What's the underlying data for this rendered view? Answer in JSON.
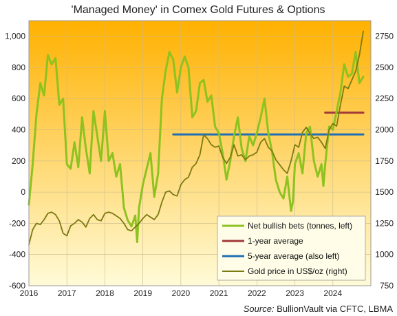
{
  "chart_data": {
    "type": "line",
    "title": "'Managed Money' in Comex Gold Futures & Options",
    "source_label": "Source:",
    "source_text": "BullionVault via CFTC, LBMA",
    "x_ticks": [
      "2016",
      "2017",
      "2018",
      "2019",
      "2020",
      "2021",
      "2022",
      "2023",
      "2024"
    ],
    "y_left": {
      "ylim": [
        -600,
        1100
      ],
      "ticks": [
        -600,
        -400,
        -200,
        0,
        200,
        400,
        600,
        800,
        1000
      ],
      "tick_labels": [
        "-600",
        "-400",
        "-200",
        "0",
        "200",
        "400",
        "600",
        "800",
        "1,000"
      ]
    },
    "y_right": {
      "ylim": [
        750,
        2875
      ],
      "ticks": [
        750,
        1000,
        1250,
        1500,
        1750,
        2000,
        2250,
        2500,
        2750
      ],
      "tick_labels": [
        "750",
        "1000",
        "1250",
        "1500",
        "1750",
        "2000",
        "2250",
        "2500",
        "2750"
      ]
    },
    "grid": true,
    "legend_position": "bottom-right",
    "colors": {
      "net_bets": "#8dc21f",
      "one_year": "#a0393a",
      "five_year": "#1f6fb4",
      "gold": "#7a7a12",
      "bg_top": "#ffb100",
      "bg_bottom": "#fffbd8"
    },
    "series": [
      {
        "key": "net_bets",
        "name": "Net bullish bets (tonnes, left)",
        "axis": "left",
        "points": [
          [
            2016.0,
            -80
          ],
          [
            2016.1,
            180
          ],
          [
            2016.2,
            500
          ],
          [
            2016.3,
            700
          ],
          [
            2016.4,
            620
          ],
          [
            2016.5,
            880
          ],
          [
            2016.6,
            820
          ],
          [
            2016.7,
            860
          ],
          [
            2016.8,
            560
          ],
          [
            2016.9,
            600
          ],
          [
            2017.0,
            180
          ],
          [
            2017.1,
            150
          ],
          [
            2017.2,
            320
          ],
          [
            2017.3,
            160
          ],
          [
            2017.4,
            480
          ],
          [
            2017.5,
            280
          ],
          [
            2017.6,
            120
          ],
          [
            2017.7,
            520
          ],
          [
            2017.8,
            360
          ],
          [
            2017.9,
            200
          ],
          [
            2018.0,
            520
          ],
          [
            2018.1,
            200
          ],
          [
            2018.2,
            250
          ],
          [
            2018.3,
            100
          ],
          [
            2018.4,
            180
          ],
          [
            2018.5,
            -100
          ],
          [
            2018.6,
            -180
          ],
          [
            2018.7,
            -220
          ],
          [
            2018.8,
            -150
          ],
          [
            2018.85,
            -320
          ],
          [
            2018.9,
            -100
          ],
          [
            2019.0,
            50
          ],
          [
            2019.1,
            150
          ],
          [
            2019.2,
            250
          ],
          [
            2019.3,
            -30
          ],
          [
            2019.4,
            120
          ],
          [
            2019.5,
            600
          ],
          [
            2019.6,
            780
          ],
          [
            2019.7,
            900
          ],
          [
            2019.8,
            850
          ],
          [
            2019.9,
            640
          ],
          [
            2020.0,
            800
          ],
          [
            2020.1,
            870
          ],
          [
            2020.2,
            800
          ],
          [
            2020.3,
            480
          ],
          [
            2020.4,
            520
          ],
          [
            2020.5,
            700
          ],
          [
            2020.6,
            720
          ],
          [
            2020.7,
            580
          ],
          [
            2020.8,
            620
          ],
          [
            2020.9,
            420
          ],
          [
            2021.0,
            380
          ],
          [
            2021.1,
            250
          ],
          [
            2021.2,
            80
          ],
          [
            2021.3,
            200
          ],
          [
            2021.4,
            360
          ],
          [
            2021.5,
            480
          ],
          [
            2021.6,
            280
          ],
          [
            2021.7,
            200
          ],
          [
            2021.8,
            360
          ],
          [
            2021.9,
            300
          ],
          [
            2022.0,
            380
          ],
          [
            2022.1,
            480
          ],
          [
            2022.2,
            600
          ],
          [
            2022.3,
            380
          ],
          [
            2022.4,
            260
          ],
          [
            2022.5,
            80
          ],
          [
            2022.6,
            0
          ],
          [
            2022.7,
            -40
          ],
          [
            2022.8,
            100
          ],
          [
            2022.9,
            -120
          ],
          [
            2022.95,
            -60
          ],
          [
            2023.0,
            180
          ],
          [
            2023.1,
            250
          ],
          [
            2023.2,
            120
          ],
          [
            2023.3,
            380
          ],
          [
            2023.4,
            420
          ],
          [
            2023.5,
            200
          ],
          [
            2023.6,
            100
          ],
          [
            2023.7,
            180
          ],
          [
            2023.75,
            40
          ],
          [
            2023.8,
            180
          ],
          [
            2023.9,
            420
          ],
          [
            2024.0,
            400
          ],
          [
            2024.1,
            520
          ],
          [
            2024.2,
            640
          ],
          [
            2024.3,
            820
          ],
          [
            2024.4,
            740
          ],
          [
            2024.5,
            760
          ],
          [
            2024.6,
            900
          ],
          [
            2024.7,
            700
          ],
          [
            2024.8,
            740
          ]
        ]
      },
      {
        "key": "one_year",
        "name": "1-year average",
        "axis": "left",
        "points": [
          [
            2023.8,
            510
          ],
          [
            2024.8,
            510
          ]
        ]
      },
      {
        "key": "five_year",
        "name": "5-year average (also left)",
        "axis": "left",
        "points": [
          [
            2019.8,
            370
          ],
          [
            2024.8,
            370
          ]
        ]
      },
      {
        "key": "gold",
        "name": "Gold price in US$/oz (right)",
        "axis": "right",
        "points": [
          [
            2016.0,
            1080
          ],
          [
            2016.1,
            1200
          ],
          [
            2016.2,
            1250
          ],
          [
            2016.3,
            1240
          ],
          [
            2016.4,
            1280
          ],
          [
            2016.5,
            1330
          ],
          [
            2016.6,
            1340
          ],
          [
            2016.7,
            1320
          ],
          [
            2016.8,
            1270
          ],
          [
            2016.9,
            1170
          ],
          [
            2017.0,
            1150
          ],
          [
            2017.1,
            1230
          ],
          [
            2017.2,
            1250
          ],
          [
            2017.3,
            1280
          ],
          [
            2017.4,
            1260
          ],
          [
            2017.5,
            1220
          ],
          [
            2017.6,
            1290
          ],
          [
            2017.7,
            1320
          ],
          [
            2017.8,
            1280
          ],
          [
            2017.9,
            1270
          ],
          [
            2018.0,
            1330
          ],
          [
            2018.1,
            1340
          ],
          [
            2018.2,
            1330
          ],
          [
            2018.3,
            1310
          ],
          [
            2018.4,
            1290
          ],
          [
            2018.5,
            1250
          ],
          [
            2018.6,
            1200
          ],
          [
            2018.7,
            1190
          ],
          [
            2018.8,
            1220
          ],
          [
            2018.9,
            1250
          ],
          [
            2019.0,
            1290
          ],
          [
            2019.1,
            1320
          ],
          [
            2019.2,
            1300
          ],
          [
            2019.3,
            1280
          ],
          [
            2019.4,
            1320
          ],
          [
            2019.5,
            1420
          ],
          [
            2019.6,
            1500
          ],
          [
            2019.7,
            1510
          ],
          [
            2019.8,
            1480
          ],
          [
            2019.9,
            1470
          ],
          [
            2020.0,
            1560
          ],
          [
            2020.1,
            1600
          ],
          [
            2020.2,
            1620
          ],
          [
            2020.3,
            1700
          ],
          [
            2020.4,
            1730
          ],
          [
            2020.5,
            1800
          ],
          [
            2020.6,
            1960
          ],
          [
            2020.7,
            1930
          ],
          [
            2020.8,
            1880
          ],
          [
            2020.9,
            1860
          ],
          [
            2021.0,
            1870
          ],
          [
            2021.1,
            1780
          ],
          [
            2021.2,
            1730
          ],
          [
            2021.3,
            1780
          ],
          [
            2021.4,
            1880
          ],
          [
            2021.5,
            1790
          ],
          [
            2021.6,
            1800
          ],
          [
            2021.7,
            1760
          ],
          [
            2021.8,
            1790
          ],
          [
            2021.9,
            1800
          ],
          [
            2022.0,
            1820
          ],
          [
            2022.1,
            1900
          ],
          [
            2022.2,
            1930
          ],
          [
            2022.3,
            1860
          ],
          [
            2022.4,
            1830
          ],
          [
            2022.5,
            1760
          ],
          [
            2022.6,
            1720
          ],
          [
            2022.7,
            1680
          ],
          [
            2022.8,
            1650
          ],
          [
            2022.9,
            1750
          ],
          [
            2023.0,
            1880
          ],
          [
            2023.1,
            1860
          ],
          [
            2023.2,
            1980
          ],
          [
            2023.3,
            2020
          ],
          [
            2023.4,
            1970
          ],
          [
            2023.5,
            1930
          ],
          [
            2023.6,
            1940
          ],
          [
            2023.7,
            1900
          ],
          [
            2023.8,
            1850
          ],
          [
            2023.9,
            2000
          ],
          [
            2024.0,
            2050
          ],
          [
            2024.1,
            2030
          ],
          [
            2024.2,
            2200
          ],
          [
            2024.3,
            2350
          ],
          [
            2024.4,
            2330
          ],
          [
            2024.5,
            2400
          ],
          [
            2024.6,
            2470
          ],
          [
            2024.7,
            2600
          ],
          [
            2024.8,
            2790
          ]
        ]
      }
    ]
  }
}
